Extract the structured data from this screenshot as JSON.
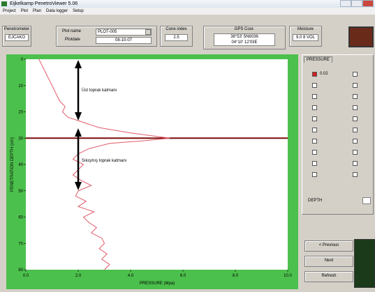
{
  "window": {
    "title": "Eijkelkamp PenetroViewer 5.06",
    "menu": [
      "Project",
      "Plot",
      "Plan",
      "Data logger",
      "Setup"
    ],
    "toolbar": {
      "penetrometer_label": "Penetrometer",
      "penetrometer": "EJCAKO",
      "plot_name_label": "Plot name",
      "plot_name": "PLOT-005",
      "plot_date_label": "Plotdate",
      "plot_date": "08-10-07",
      "cone_label": "Cone index",
      "cone": "2.5",
      "gps_label": "GPS Coor.",
      "gps_1": "38°53' 5N6036",
      "gps_2": "04°10' 12'03E",
      "moisture_label": "Moisture",
      "moisture": "9.0 8 VOL"
    },
    "panel": {
      "tab": "PRESSURE",
      "first_value": "0.02",
      "depth_label": "DEPTH",
      "buttons": [
        "< Previous",
        "Next",
        "Refresh"
      ]
    }
  },
  "chart_data": {
    "type": "line",
    "x_label": "PRESSURE (Mpa)",
    "y_label": "PENETRATION DEPTH (cm)",
    "annotations": [
      "Üst toprak katmanı",
      "Sıkışmış toprak katmanı"
    ],
    "xlim": [
      0,
      10
    ],
    "xticks": [
      {
        "value": 0,
        "label": "0.0"
      },
      {
        "value": 2,
        "label": "2.0"
      },
      {
        "value": 4,
        "label": "4.0"
      },
      {
        "value": 6,
        "label": "6.0"
      },
      {
        "value": 8,
        "label": "8.0"
      },
      {
        "value": 10,
        "label": "10.0"
      }
    ],
    "ylim": [
      0,
      80
    ],
    "yticks": [
      0,
      10,
      20,
      30,
      40,
      50,
      60,
      70,
      80
    ],
    "y_inverted": true,
    "hline": 30,
    "series": [
      {
        "name": "PRESSURE",
        "color": "#e05a6a",
        "x": [
          0.5,
          0.6,
          0.7,
          0.8,
          0.9,
          1.0,
          1.1,
          1.2,
          1.3,
          1.5,
          1.4,
          1.6,
          2.2,
          2.8,
          4.0,
          5.5,
          4.5,
          3.2,
          2.4,
          2.0,
          1.8,
          2.2,
          2.0,
          1.8,
          2.1,
          2.5,
          2.0,
          1.9,
          2.3,
          2.0,
          2.6,
          2.2,
          2.4,
          2.7,
          2.5,
          2.9,
          3.0,
          2.8,
          3.1,
          2.9,
          3.2,
          3.0
        ],
        "values": [
          0,
          2,
          4,
          6,
          8,
          10,
          12,
          14,
          16,
          18,
          20,
          22,
          24,
          26,
          28,
          30,
          31,
          32,
          34,
          36,
          38,
          40,
          42,
          44,
          46,
          48,
          50,
          52,
          54,
          56,
          58,
          60,
          62,
          64,
          66,
          68,
          70,
          72,
          74,
          76,
          78,
          80
        ]
      }
    ]
  }
}
